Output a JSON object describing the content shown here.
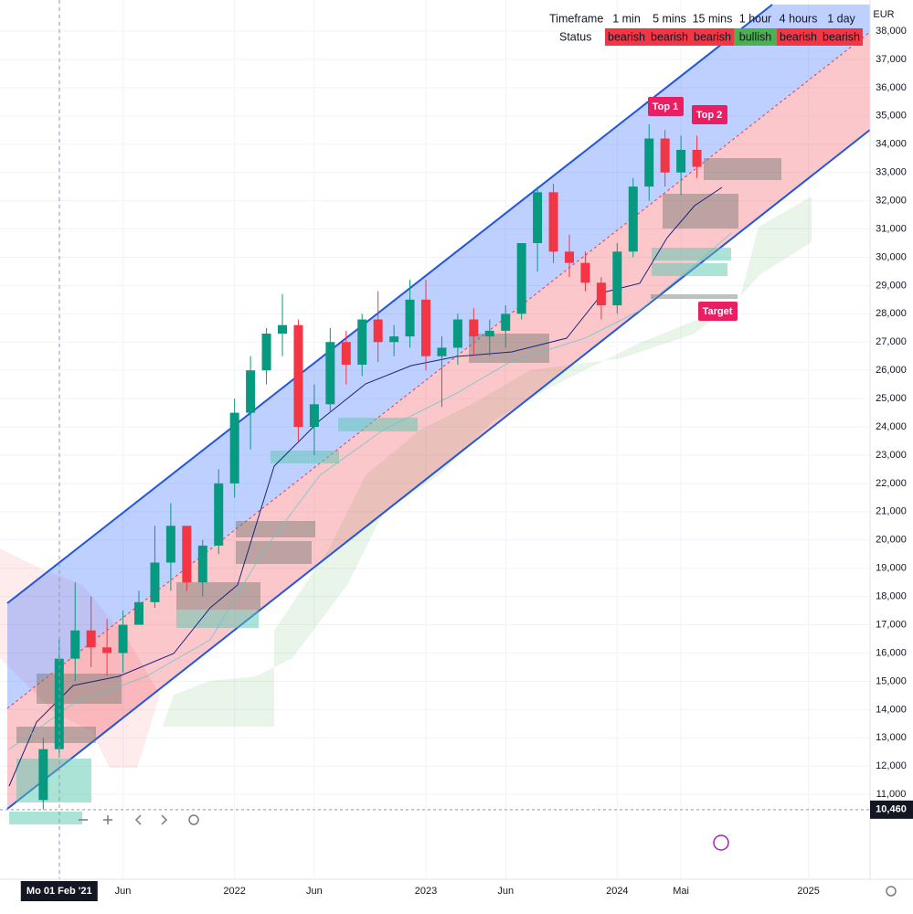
{
  "chart_data": {
    "type": "candlestick",
    "currency": "EUR",
    "up_color": "#089981",
    "down_color": "#f23645",
    "x": [
      "2021-01",
      "2021-02",
      "2021-03",
      "2021-04",
      "2021-05",
      "2021-06",
      "2021-07",
      "2021-08",
      "2021-09",
      "2021-10",
      "2021-11",
      "2021-12",
      "2022-01",
      "2022-02",
      "2022-03",
      "2022-04",
      "2022-05",
      "2022-06",
      "2022-07",
      "2022-08",
      "2022-09",
      "2022-10",
      "2022-11",
      "2022-12",
      "2023-01",
      "2023-02",
      "2023-03",
      "2023-04",
      "2023-05",
      "2023-06",
      "2023-07",
      "2023-08",
      "2023-09",
      "2023-10",
      "2023-11",
      "2023-12",
      "2024-01",
      "2024-02",
      "2024-03",
      "2024-04",
      "2024-05",
      "2024-06"
    ],
    "open": [
      10800,
      12600,
      15800,
      16800,
      16200,
      16000,
      17000,
      17800,
      19200,
      20500,
      18500,
      19800,
      22000,
      24500,
      26000,
      27300,
      27600,
      24000,
      24800,
      27000,
      26200,
      27800,
      27000,
      27200,
      28500,
      26500,
      26800,
      27800,
      27200,
      27400,
      28000,
      30500,
      32300,
      30200,
      29800,
      29100,
      28300,
      30200,
      32500,
      34200,
      33000,
      33800
    ],
    "high": [
      13000,
      16500,
      18500,
      18000,
      17200,
      17500,
      18200,
      20500,
      21300,
      20500,
      20000,
      22500,
      25000,
      26500,
      27500,
      28700,
      27800,
      25500,
      27500,
      27400,
      28000,
      28800,
      27600,
      29200,
      29200,
      27200,
      28000,
      28200,
      27800,
      28300,
      30500,
      32500,
      32600,
      30800,
      30200,
      29300,
      30500,
      32800,
      34700,
      34500,
      34300,
      34300
    ],
    "low": [
      10460,
      12300,
      15000,
      15500,
      15200,
      15300,
      17000,
      17600,
      18200,
      18200,
      18000,
      19500,
      21500,
      23200,
      25500,
      26500,
      23500,
      23000,
      24500,
      25500,
      25800,
      26300,
      26500,
      26800,
      26000,
      24700,
      26200,
      26500,
      26500,
      26800,
      27800,
      29500,
      29800,
      29300,
      28800,
      27800,
      28000,
      30000,
      32000,
      32500,
      32200,
      32800
    ],
    "close": [
      12600,
      15800,
      16800,
      16200,
      16000,
      17000,
      17800,
      19200,
      20500,
      18500,
      19800,
      22000,
      24500,
      26000,
      27300,
      27600,
      24000,
      24800,
      27000,
      26200,
      27800,
      27000,
      27200,
      28500,
      26500,
      26800,
      27800,
      27200,
      27400,
      28000,
      30500,
      32300,
      30200,
      29800,
      29100,
      28300,
      30200,
      32500,
      34200,
      33000,
      33800,
      33200
    ],
    "xlim": [
      "2020-10",
      "2025-04"
    ],
    "xticks": [
      {
        "value": "2021-02",
        "label": "Mo 01 Feb '21"
      },
      {
        "value": "2021-06",
        "label": "Jun"
      },
      {
        "value": "2022-01",
        "label": "2022"
      },
      {
        "value": "2022-06",
        "label": "Jun"
      },
      {
        "value": "2023-01",
        "label": "2023"
      },
      {
        "value": "2023-06",
        "label": "Jun"
      },
      {
        "value": "2024-01",
        "label": "2024"
      },
      {
        "value": "2024-05",
        "label": "Mai"
      },
      {
        "value": "2025-01",
        "label": "2025"
      }
    ],
    "ylim": [
      9000,
      39100
    ],
    "yticks": [
      {
        "value": 11000,
        "label": "11,000"
      },
      {
        "value": 12000,
        "label": "12,000"
      },
      {
        "value": 13000,
        "label": "13,000"
      },
      {
        "value": 14000,
        "label": "14,000"
      },
      {
        "value": 15000,
        "label": "15,000"
      },
      {
        "value": 16000,
        "label": "16,000"
      },
      {
        "value": 17000,
        "label": "17,000"
      },
      {
        "value": 18000,
        "label": "18,000"
      },
      {
        "value": 19000,
        "label": "19,000"
      },
      {
        "value": 20000,
        "label": "20,000"
      },
      {
        "value": 21000,
        "label": "21,000"
      },
      {
        "value": 22000,
        "label": "22,000"
      },
      {
        "value": 23000,
        "label": "23,000"
      },
      {
        "value": 24000,
        "label": "24,000"
      },
      {
        "value": 25000,
        "label": "25,000"
      },
      {
        "value": 26000,
        "label": "26,000"
      },
      {
        "value": 27000,
        "label": "27,000"
      },
      {
        "value": 28000,
        "label": "28,000"
      },
      {
        "value": 29000,
        "label": "29,000"
      },
      {
        "value": 30000,
        "label": "30,000"
      },
      {
        "value": 31000,
        "label": "31,000"
      },
      {
        "value": 32000,
        "label": "32,000"
      },
      {
        "value": 33000,
        "label": "33,000"
      },
      {
        "value": 34000,
        "label": "34,000"
      },
      {
        "value": 35000,
        "label": "35,000"
      },
      {
        "value": 36000,
        "label": "36,000"
      },
      {
        "value": 37000,
        "label": "37,000"
      },
      {
        "value": 38000,
        "label": "38,000"
      }
    ],
    "grid": true,
    "price_label": {
      "value": 10460,
      "label": "10,460"
    },
    "annotations": [
      "Top 1",
      "Top 2",
      "Target"
    ],
    "table": {
      "header": "Timeframe",
      "row_label": "Status",
      "timeframes": [
        "1 min",
        "5 mins",
        "15 mins",
        "1 hour",
        "4 hours",
        "1 day"
      ],
      "statuses": [
        "bearish",
        "bearish",
        "bearish",
        "bullish",
        "bearish",
        "bearish"
      ],
      "status_colors": [
        "#f23645",
        "#f23645",
        "#f23645",
        "#4caf50",
        "#f23645",
        "#f23645"
      ]
    }
  }
}
